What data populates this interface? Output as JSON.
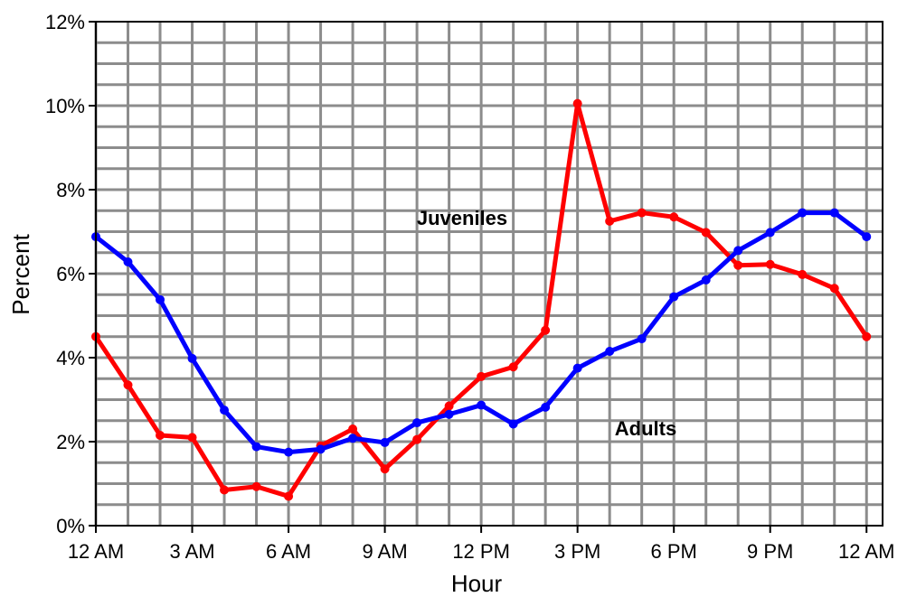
{
  "chart_data": {
    "type": "line",
    "title": "",
    "xlabel": "Hour",
    "ylabel": "Percent",
    "ylim": [
      0,
      12
    ],
    "x_ticks": [
      "12 AM",
      "3 AM",
      "6 AM",
      "9 AM",
      "12 PM",
      "3 PM",
      "6 PM",
      "9 PM",
      "12 AM"
    ],
    "y_ticks": [
      "0%",
      "2%",
      "4%",
      "6%",
      "8%",
      "10%",
      "12%"
    ],
    "x_hours": [
      0,
      1,
      2,
      3,
      4,
      5,
      6,
      7,
      8,
      9,
      10,
      11,
      12,
      13,
      14,
      15,
      16,
      17,
      18,
      19,
      20,
      21,
      22,
      23,
      24
    ],
    "grid": true,
    "series": [
      {
        "name": "Juveniles",
        "color": "#ff0000",
        "values": [
          4.5,
          3.35,
          2.15,
          2.1,
          0.85,
          0.93,
          0.7,
          1.9,
          2.3,
          1.35,
          2.05,
          2.85,
          3.55,
          3.78,
          4.65,
          10.05,
          7.25,
          7.45,
          7.35,
          6.98,
          6.2,
          6.22,
          5.98,
          5.65,
          4.5
        ]
      },
      {
        "name": "Adults",
        "color": "#0000ff",
        "values": [
          6.88,
          6.28,
          5.38,
          3.98,
          2.75,
          1.88,
          1.75,
          1.82,
          2.08,
          1.98,
          2.45,
          2.65,
          2.87,
          2.42,
          2.82,
          3.75,
          4.15,
          4.45,
          5.45,
          5.85,
          6.55,
          6.98,
          7.45,
          7.45,
          6.88
        ]
      }
    ]
  }
}
